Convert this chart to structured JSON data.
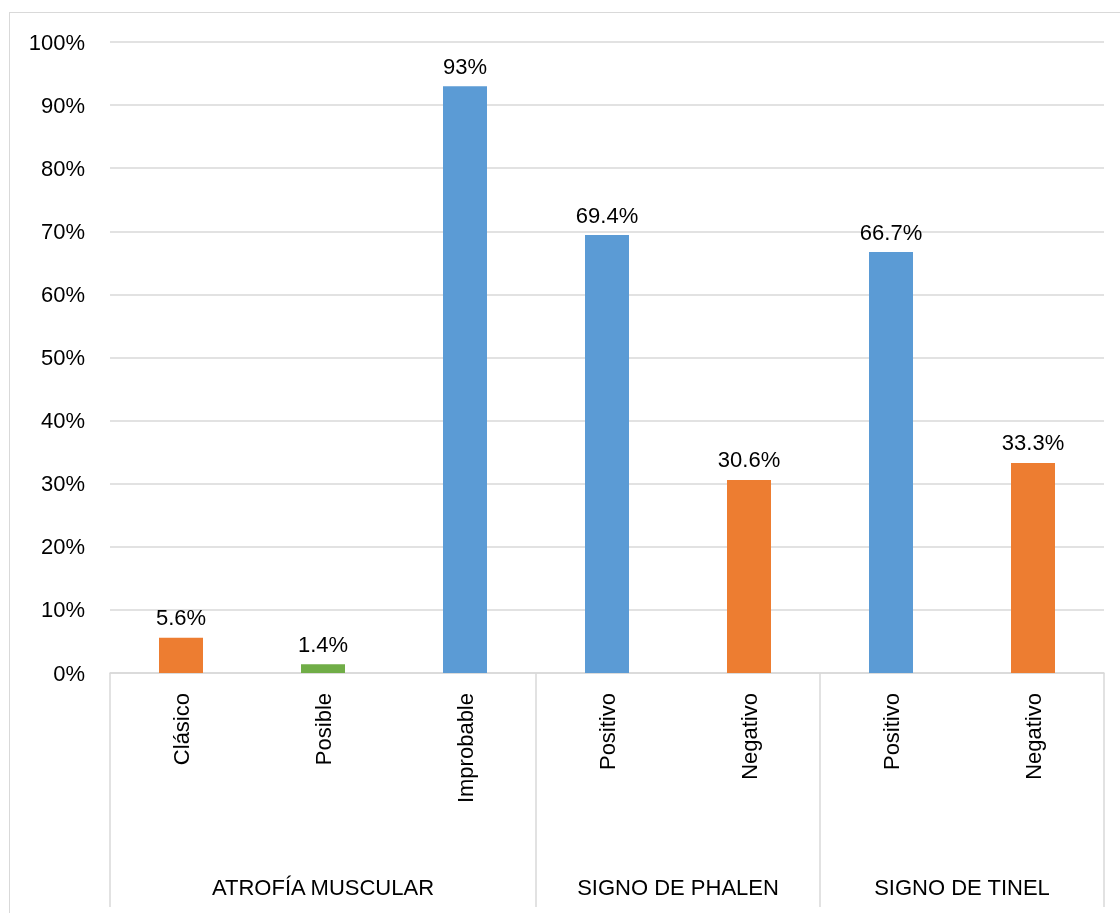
{
  "chart_data": {
    "type": "bar",
    "categories": [
      "Clásico",
      "Posible",
      "Improbable",
      "Positivo",
      "Negativo",
      "Positivo",
      "Negativo"
    ],
    "values": [
      5.6,
      1.4,
      93,
      69.4,
      30.6,
      66.7,
      33.3
    ],
    "colors": [
      "#ed7d31",
      "#70ad47",
      "#5b9bd5",
      "#5b9bd5",
      "#ed7d31",
      "#5b9bd5",
      "#ed7d31"
    ],
    "value_labels": [
      "5.6%",
      "1.4%",
      "93%",
      "69.4%",
      "30.6%",
      "66.7%",
      "33.3%"
    ],
    "ylim": [
      0,
      100
    ],
    "yticks": [
      {
        "value": 0,
        "label": "0%"
      },
      {
        "value": 10,
        "label": "10%"
      },
      {
        "value": 20,
        "label": "20%"
      },
      {
        "value": 30,
        "label": "30%"
      },
      {
        "value": 40,
        "label": "40%"
      },
      {
        "value": 50,
        "label": "50%"
      },
      {
        "value": 60,
        "label": "60%"
      },
      {
        "value": 70,
        "label": "70%"
      },
      {
        "value": 80,
        "label": "80%"
      },
      {
        "value": 90,
        "label": "90%"
      },
      {
        "value": 100,
        "label": "100%"
      }
    ],
    "grid": "y",
    "annotations": [
      "ATROFÍA MUSCULAR",
      "SIGNO DE PHALEN",
      "SIGNO DE TINEL"
    ]
  }
}
